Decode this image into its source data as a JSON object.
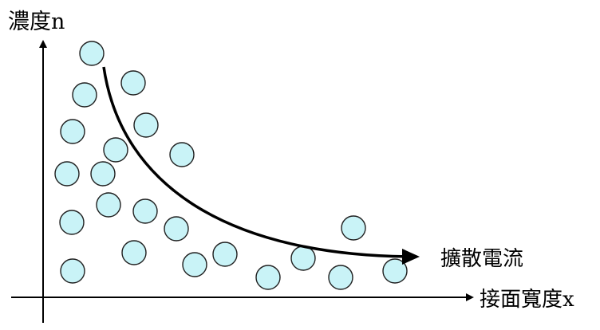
{
  "diagram": {
    "y_axis_label": "濃度n",
    "x_axis_label": "接面寬度x",
    "curve_label": "擴散電流",
    "colors": {
      "particle_fill": "#c9f3f7",
      "particle_stroke": "#1f1f1f",
      "line": "#000000"
    },
    "particle_count": 24
  }
}
